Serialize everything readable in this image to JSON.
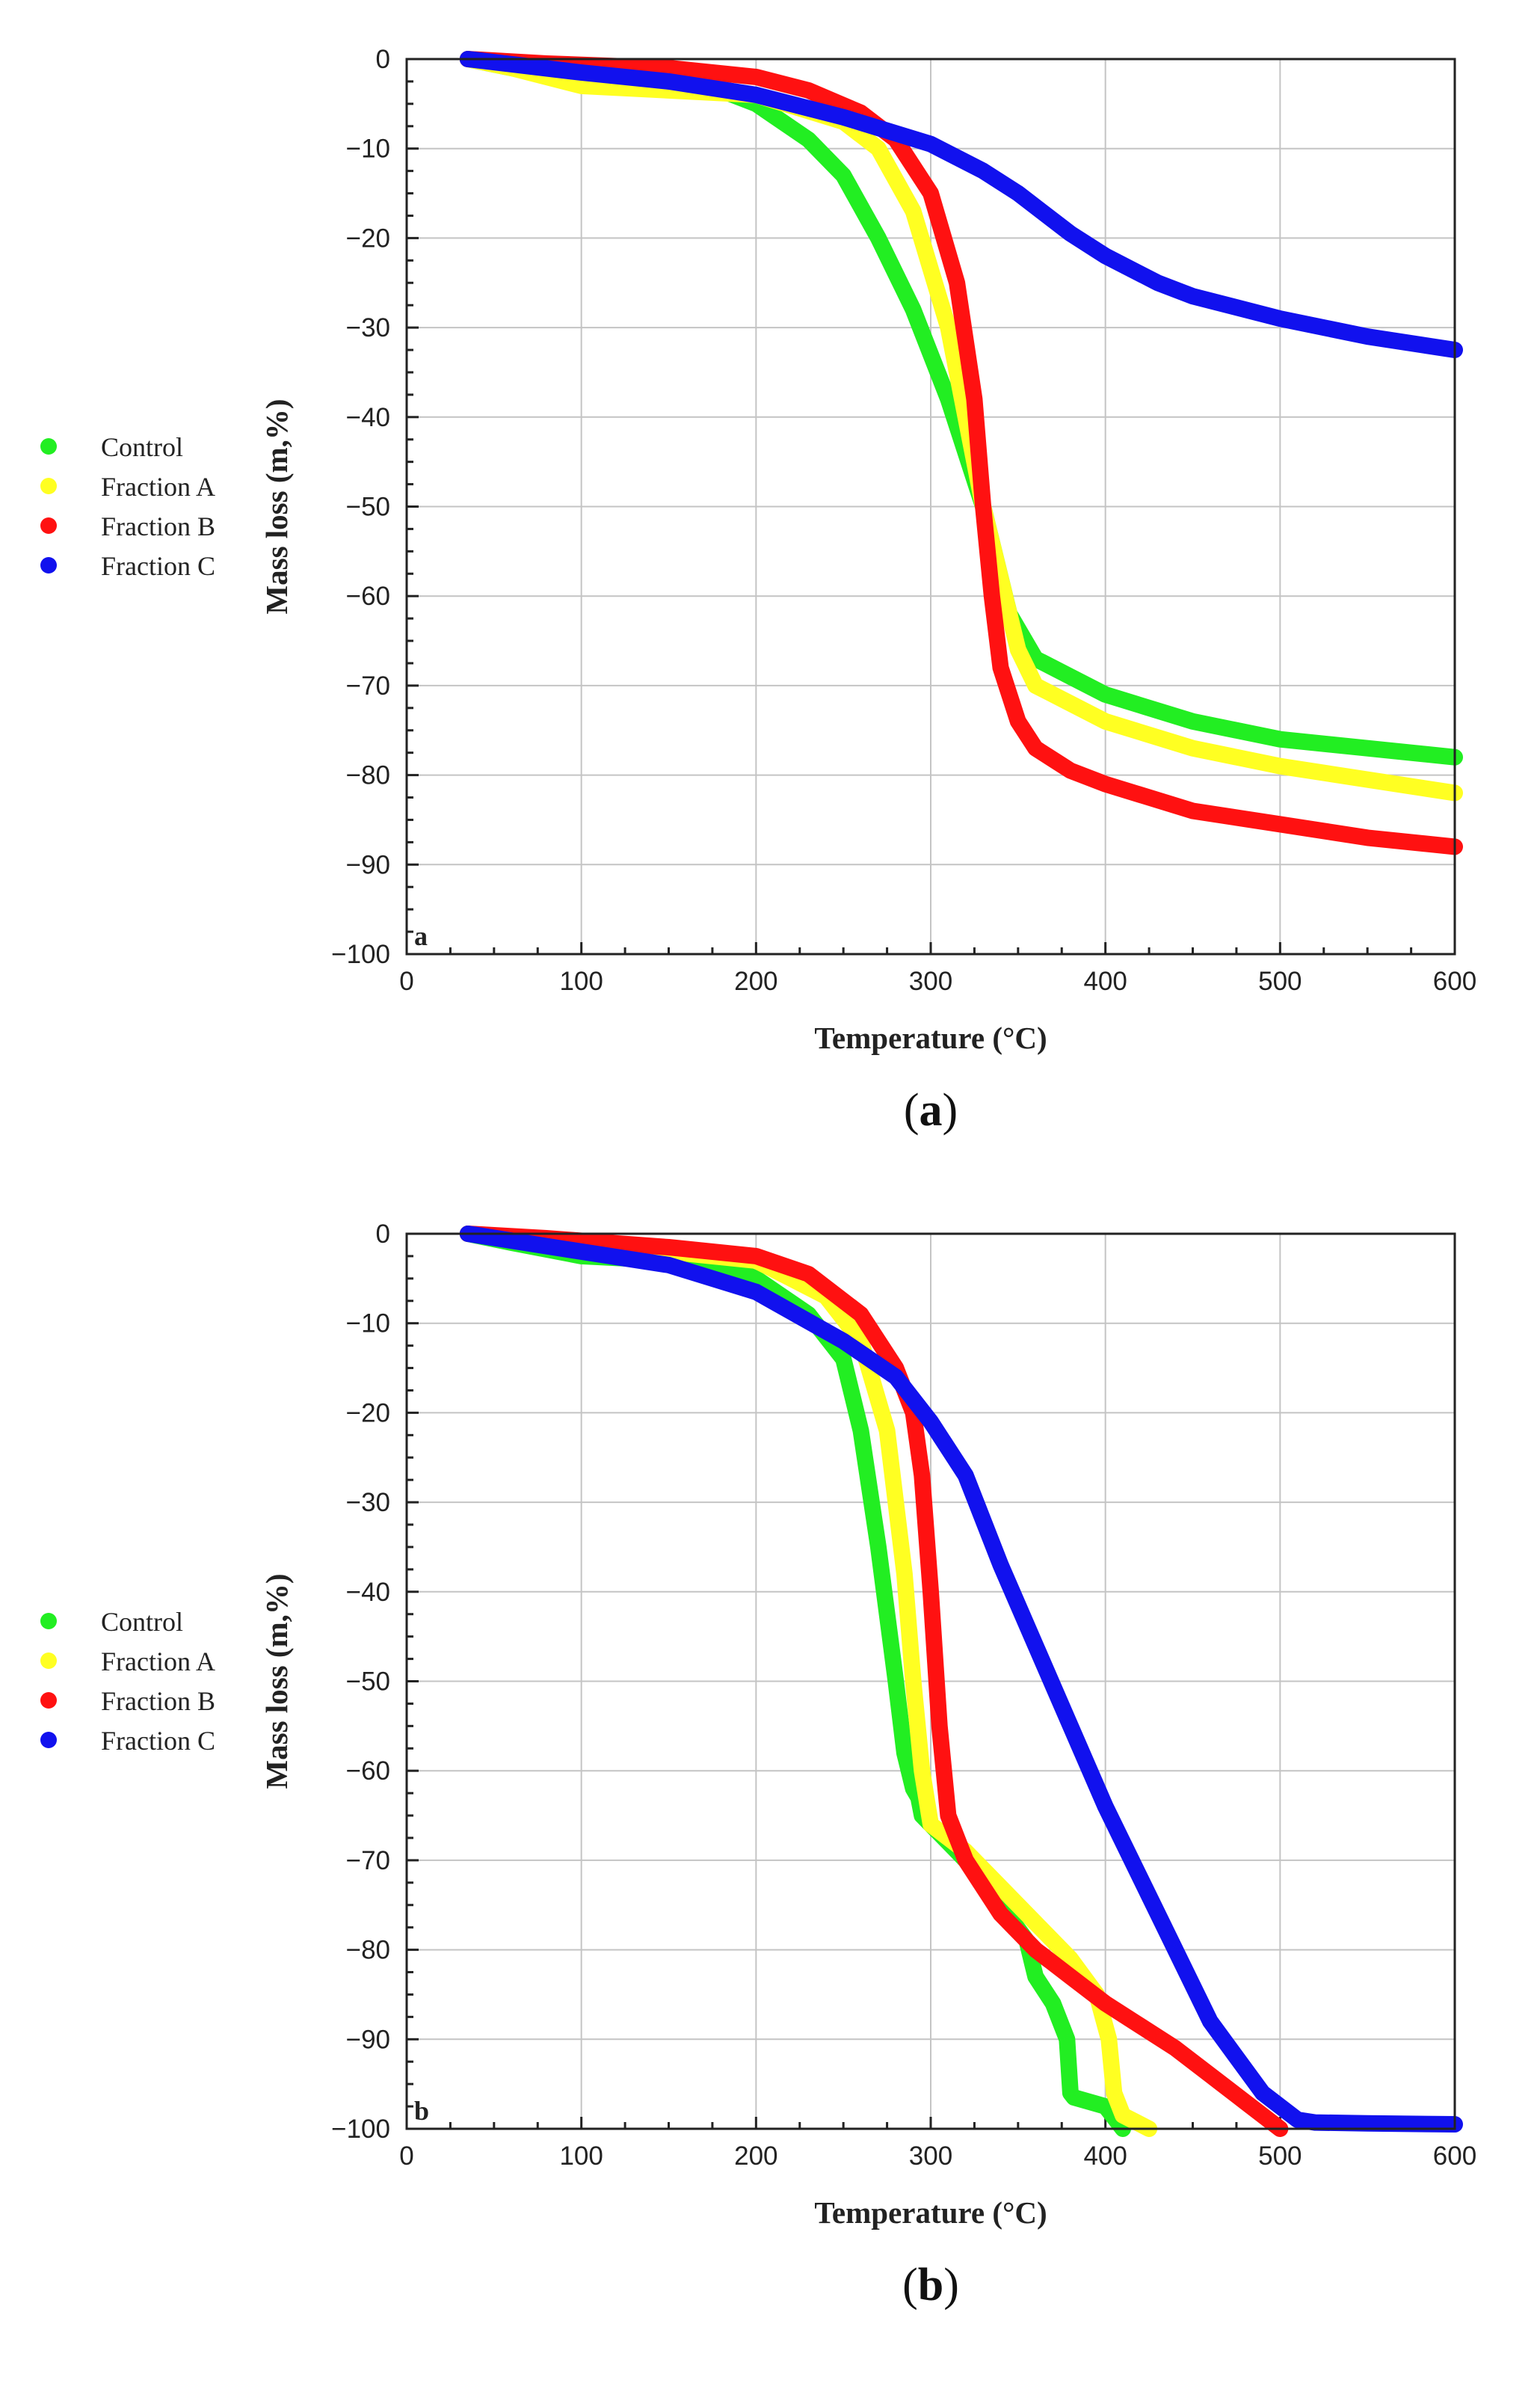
{
  "chart_data": [
    {
      "type": "line",
      "panel_label": "a",
      "caption": "(a)",
      "caption_letter": "a",
      "xlabel": "Temperature (°C)",
      "ylabel": "Mass loss (m,%)",
      "xlim": [
        0,
        600
      ],
      "ylim": [
        -100,
        0
      ],
      "xticks": [
        0,
        100,
        200,
        300,
        400,
        500,
        600
      ],
      "yticks": [
        0,
        -10,
        -20,
        -30,
        -40,
        -50,
        -60,
        -70,
        -80,
        -90,
        -100
      ],
      "grid": true,
      "legend_position": "left",
      "series": [
        {
          "name": "Control",
          "color": "#22ee22",
          "x": [
            35,
            60,
            100,
            150,
            180,
            200,
            230,
            250,
            270,
            290,
            310,
            330,
            345,
            360,
            380,
            400,
            450,
            500,
            550,
            600
          ],
          "y": [
            0,
            -1,
            -2.5,
            -3,
            -3.5,
            -5,
            -9,
            -13,
            -20,
            -28,
            -38,
            -50,
            -62,
            -67,
            -69,
            -71,
            -74,
            -76,
            -77,
            -78
          ]
        },
        {
          "name": "Fraction A",
          "color": "#ffff22",
          "x": [
            35,
            60,
            100,
            150,
            200,
            250,
            270,
            290,
            310,
            320,
            330,
            340,
            350,
            360,
            380,
            400,
            450,
            500,
            550,
            600
          ],
          "y": [
            0,
            -1,
            -3,
            -3.5,
            -4,
            -7,
            -10,
            -17,
            -30,
            -40,
            -50,
            -58,
            -66,
            -70,
            -72,
            -74,
            -77,
            -79,
            -80.5,
            -82
          ]
        },
        {
          "name": "Fraction B",
          "color": "#ff1111",
          "x": [
            35,
            80,
            150,
            200,
            230,
            260,
            280,
            300,
            315,
            325,
            330,
            335,
            340,
            350,
            360,
            380,
            400,
            450,
            500,
            550,
            600
          ],
          "y": [
            0,
            -0.5,
            -1,
            -2,
            -3.5,
            -6,
            -9,
            -15,
            -25,
            -38,
            -50,
            -60,
            -68,
            -74,
            -77,
            -79.5,
            -81,
            -84,
            -85.5,
            -87,
            -88
          ]
        },
        {
          "name": "Fraction C",
          "color": "#1111ee",
          "x": [
            35,
            100,
            150,
            200,
            250,
            300,
            330,
            350,
            380,
            400,
            430,
            450,
            500,
            550,
            600
          ],
          "y": [
            0,
            -1.5,
            -2.5,
            -4,
            -6.5,
            -9.5,
            -12.5,
            -15,
            -19.5,
            -22,
            -25,
            -26.5,
            -29,
            -31,
            -32.5
          ]
        }
      ]
    },
    {
      "type": "line",
      "panel_label": "b",
      "caption": "(b)",
      "caption_letter": "b",
      "xlabel": "Temperature (°C)",
      "ylabel": "Mass loss (m,%)",
      "xlim": [
        0,
        600
      ],
      "ylim": [
        -100,
        0
      ],
      "xticks": [
        0,
        100,
        200,
        300,
        400,
        500,
        600
      ],
      "yticks": [
        0,
        -10,
        -20,
        -30,
        -40,
        -50,
        -60,
        -70,
        -80,
        -90,
        -100
      ],
      "grid": true,
      "legend_position": "left",
      "series": [
        {
          "name": "Control",
          "color": "#22ee22",
          "x": [
            35,
            60,
            100,
            150,
            180,
            200,
            230,
            250,
            260,
            270,
            280,
            285,
            290,
            293,
            295,
            300,
            310,
            320,
            340,
            355,
            360,
            370,
            378,
            380,
            382,
            400,
            410
          ],
          "y": [
            0,
            -1,
            -2.5,
            -3,
            -3.5,
            -5,
            -9,
            -14,
            -22,
            -35,
            -50,
            -58,
            -62,
            -63,
            -65,
            -66,
            -68,
            -70,
            -75,
            -79,
            -83,
            -86,
            -90,
            -96,
            -96.5,
            -97.5,
            -100
          ]
        },
        {
          "name": "Fraction A",
          "color": "#ffff22",
          "x": [
            35,
            80,
            150,
            200,
            240,
            260,
            275,
            285,
            290,
            295,
            300,
            310,
            320,
            340,
            360,
            380,
            395,
            402,
            405,
            410,
            425
          ],
          "y": [
            0,
            -1,
            -2,
            -3,
            -7,
            -12,
            -22,
            -38,
            -50,
            -60,
            -66,
            -67.5,
            -69,
            -73,
            -77,
            -81,
            -85,
            -90,
            -96,
            -98.5,
            -100
          ]
        },
        {
          "name": "Fraction B",
          "color": "#ff1111",
          "x": [
            35,
            80,
            150,
            200,
            230,
            260,
            280,
            290,
            295,
            300,
            305,
            310,
            320,
            340,
            360,
            380,
            400,
            420,
            440,
            460,
            480,
            500
          ],
          "y": [
            0,
            -0.5,
            -1.5,
            -2.5,
            -4.5,
            -9,
            -15,
            -20,
            -27,
            -40,
            -55,
            -65,
            -70,
            -76,
            -80,
            -83,
            -86,
            -88.5,
            -91,
            -94,
            -97,
            -100
          ]
        },
        {
          "name": "Fraction C",
          "color": "#1111ee",
          "x": [
            35,
            100,
            150,
            200,
            250,
            280,
            300,
            320,
            340,
            360,
            380,
            400,
            430,
            460,
            490,
            510,
            520,
            550,
            600
          ],
          "y": [
            0,
            -2,
            -3.5,
            -6.5,
            -12,
            -16,
            -21,
            -27,
            -37,
            -46,
            -55,
            -64,
            -76,
            -88,
            -96,
            -99,
            -99.3,
            -99.4,
            -99.5
          ]
        }
      ]
    }
  ]
}
